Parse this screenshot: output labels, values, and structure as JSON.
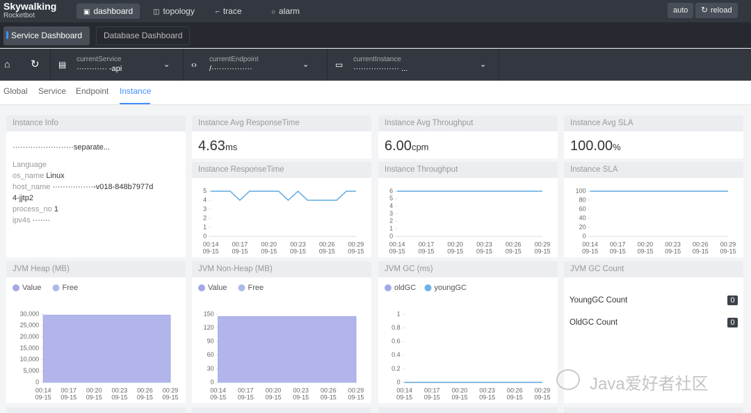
{
  "nav": {
    "logo": "Skywalking",
    "logo_sub": "Rocketbot",
    "tabs": [
      "dashboard",
      "topology",
      "trace",
      "alarm"
    ],
    "actions": [
      "auto",
      "reload"
    ]
  },
  "dashboards": [
    "Service Dashboard",
    "Database Dashboard"
  ],
  "selectors": [
    {
      "label": "currentService",
      "value": "············ -api"
    },
    {
      "label": "currentEndpoint",
      "value": "/················"
    },
    {
      "label": "currentInstance",
      "value": "·················· ..."
    }
  ],
  "subtabs": [
    "Global",
    "Service",
    "Endpoint",
    "Instance"
  ],
  "active_subtab": 3,
  "instance_info": {
    "title": "Instance Info",
    "name": "························separate...",
    "fields": [
      {
        "key": "Language"
      },
      {
        "key": "os_name",
        "value": "Linux"
      },
      {
        "key": "host_name",
        "value": "················-v018-848b7977d4-jjtp2"
      },
      {
        "key": "process_no",
        "value": "1"
      },
      {
        "key": "ipv4s",
        "value": "·······"
      }
    ]
  },
  "cards": [
    {
      "title": "Instance Avg ResponseTime",
      "value": "4.63",
      "unit": "ms"
    },
    {
      "title": "Instance Avg Throughput",
      "value": "6.00",
      "unit": "cpm"
    },
    {
      "title": "Instance Avg SLA",
      "value": "100.00",
      "unit": "%"
    }
  ],
  "x_sublabel": "09-15",
  "charts": [
    {
      "title": "Instance ResponseTime",
      "type": "line",
      "categories": [
        "00:14",
        null,
        null,
        "00:17",
        null,
        null,
        "00:20",
        null,
        null,
        "00:23",
        null,
        null,
        "00:26",
        null,
        null,
        "00:29"
      ],
      "series": [
        {
          "color": "#5aa8e0",
          "values": [
            5,
            5,
            5,
            4,
            5,
            5,
            5,
            5,
            4,
            5,
            4,
            4,
            4,
            4,
            5,
            5
          ]
        }
      ],
      "ylim": [
        0,
        5
      ],
      "yticks": [
        0,
        1,
        2,
        3,
        4,
        5
      ]
    },
    {
      "title": "Instance Throughput",
      "type": "line",
      "categories": [
        "00:14",
        null,
        null,
        "00:17",
        null,
        null,
        "00:20",
        null,
        null,
        "00:23",
        null,
        null,
        "00:26",
        null,
        null,
        "00:29"
      ],
      "series": [
        {
          "color": "#5aa8e0",
          "values": [
            6,
            6,
            6,
            6,
            6,
            6,
            6,
            6,
            6,
            6,
            6,
            6,
            6,
            6,
            6,
            6
          ]
        }
      ],
      "ylim": [
        0,
        6
      ],
      "yticks": [
        0,
        1,
        2,
        3,
        4,
        5,
        6
      ]
    },
    {
      "title": "Instance SLA",
      "type": "line",
      "categories": [
        "00:14",
        null,
        null,
        "00:17",
        null,
        null,
        "00:20",
        null,
        null,
        "00:23",
        null,
        null,
        "00:26",
        null,
        null,
        "00:29"
      ],
      "series": [
        {
          "color": "#5aa8e0",
          "values": [
            100,
            100,
            100,
            100,
            100,
            100,
            100,
            100,
            100,
            100,
            100,
            100,
            100,
            100,
            100,
            100
          ]
        }
      ],
      "ylim": [
        0,
        100
      ],
      "yticks": [
        0,
        20,
        40,
        60,
        80,
        100
      ]
    },
    {
      "title": "JVM Heap (MB)",
      "type": "area",
      "categories": [
        "00:14",
        null,
        null,
        "00:17",
        null,
        null,
        "00:20",
        null,
        null,
        "00:23",
        null,
        null,
        "00:26",
        null,
        null,
        "00:29"
      ],
      "series": [
        {
          "name": "Value",
          "color": "#a3a8e6",
          "values": [
            29600,
            29600,
            29600,
            29600,
            29600,
            29600,
            29600,
            29600,
            29600,
            29600,
            29600,
            29600,
            29600,
            29600,
            29600,
            29600
          ]
        },
        {
          "name": "Free",
          "color": "#a9bbe9",
          "values": [
            0,
            0,
            0,
            0,
            0,
            0,
            0,
            0,
            0,
            0,
            0,
            0,
            0,
            0,
            0,
            0
          ]
        }
      ],
      "ylim": [
        0,
        30000
      ],
      "yticks": [
        0,
        {
          "value": 5000,
          "label": "5,000"
        },
        {
          "value": 10000,
          "label": "10,000"
        },
        {
          "value": 15000,
          "label": "15,000"
        },
        {
          "value": 20000,
          "label": "20,000"
        },
        {
          "value": 25000,
          "label": "25,000"
        },
        {
          "value": 30000,
          "label": "30,000"
        }
      ]
    },
    {
      "title": "JVM Non-Heap (MB)",
      "type": "area",
      "categories": [
        "00:14",
        null,
        null,
        "00:17",
        null,
        null,
        "00:20",
        null,
        null,
        "00:23",
        null,
        null,
        "00:26",
        null,
        null,
        "00:29"
      ],
      "series": [
        {
          "name": "Value",
          "color": "#a3a8e6",
          "values": [
            145,
            145,
            145,
            145,
            145,
            145,
            145,
            145,
            145,
            145,
            145,
            145,
            145,
            145,
            145,
            145
          ]
        },
        {
          "name": "Free",
          "color": "#a9bbe9",
          "values": [
            0,
            0,
            0,
            0,
            0,
            0,
            0,
            0,
            0,
            0,
            0,
            0,
            0,
            0,
            0,
            0
          ]
        }
      ],
      "ylim": [
        0,
        150
      ],
      "yticks": [
        0,
        30,
        60,
        90,
        120,
        150
      ]
    },
    {
      "title": "JVM GC (ms)",
      "type": "line",
      "categories": [
        "00:14",
        null,
        null,
        "00:17",
        null,
        null,
        "00:20",
        null,
        null,
        "00:23",
        null,
        null,
        "00:26",
        null,
        null,
        "00:29"
      ],
      "series": [
        {
          "name": "oldGC",
          "color": "#a3a8e6",
          "values": [
            0,
            0,
            0,
            0,
            0,
            0,
            0,
            0,
            0,
            0,
            0,
            0,
            0,
            0,
            0,
            0
          ]
        },
        {
          "name": "youngGC",
          "color": "#6fb2e6",
          "values": [
            0,
            0,
            0,
            0,
            0,
            0,
            0,
            0,
            0,
            0,
            0,
            0,
            0,
            0,
            0,
            0
          ]
        }
      ],
      "ylim": [
        0,
        1
      ],
      "yticks": [
        0,
        0.2,
        0.4,
        0.6,
        0.8,
        1
      ]
    }
  ],
  "gc_count": {
    "title": "JVM GC Count",
    "rows": [
      {
        "label": "YoungGC Count",
        "value": 0
      },
      {
        "label": "OldGC Count",
        "value": 0
      }
    ]
  },
  "watermark": "Java爱好者社区"
}
